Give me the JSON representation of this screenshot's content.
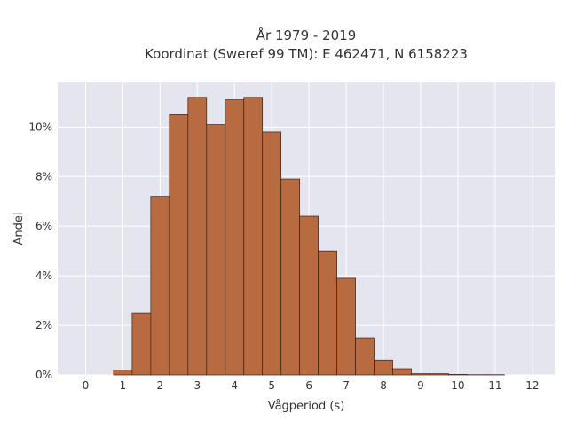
{
  "chart_data": {
    "type": "bar",
    "title_line1": "År 1979 - 2019",
    "title_line2": "Koordinat (Sweref 99 TM): E 462471, N 6158223",
    "xlabel": "Vågperiod (s)",
    "ylabel": "Andel",
    "bin_width": 0.5,
    "bins": [
      {
        "x": 0.0,
        "value": 0.0
      },
      {
        "x": 0.5,
        "value": 0.0
      },
      {
        "x": 1.0,
        "value": 0.2
      },
      {
        "x": 1.5,
        "value": 2.5
      },
      {
        "x": 2.0,
        "value": 7.2
      },
      {
        "x": 2.5,
        "value": 10.5
      },
      {
        "x": 3.0,
        "value": 11.2
      },
      {
        "x": 3.5,
        "value": 10.1
      },
      {
        "x": 4.0,
        "value": 11.1
      },
      {
        "x": 4.5,
        "value": 11.2
      },
      {
        "x": 5.0,
        "value": 9.8
      },
      {
        "x": 5.5,
        "value": 7.9
      },
      {
        "x": 6.0,
        "value": 6.4
      },
      {
        "x": 6.5,
        "value": 5.0
      },
      {
        "x": 7.0,
        "value": 3.9
      },
      {
        "x": 7.5,
        "value": 1.5
      },
      {
        "x": 8.0,
        "value": 0.6
      },
      {
        "x": 8.5,
        "value": 0.25
      },
      {
        "x": 9.0,
        "value": 0.05
      },
      {
        "x": 9.5,
        "value": 0.05
      },
      {
        "x": 10.0,
        "value": 0.02
      },
      {
        "x": 10.5,
        "value": 0.01
      },
      {
        "x": 11.0,
        "value": 0.01
      }
    ],
    "xlim": [
      -0.75,
      12.6
    ],
    "ylim": [
      0,
      11.8
    ],
    "x_ticks": [
      0,
      1,
      2,
      3,
      4,
      5,
      6,
      7,
      8,
      9,
      10,
      11,
      12
    ],
    "y_ticks": [
      0,
      2,
      4,
      6,
      8,
      10
    ],
    "y_tick_labels": [
      "0%",
      "2%",
      "4%",
      "6%",
      "8%",
      "10%"
    ],
    "grid": true,
    "colors": {
      "bar_fill": "#b86a40",
      "bar_stroke": "#3a2216",
      "plot_bg": "#e5e5ef",
      "grid": "#ffffff"
    }
  }
}
